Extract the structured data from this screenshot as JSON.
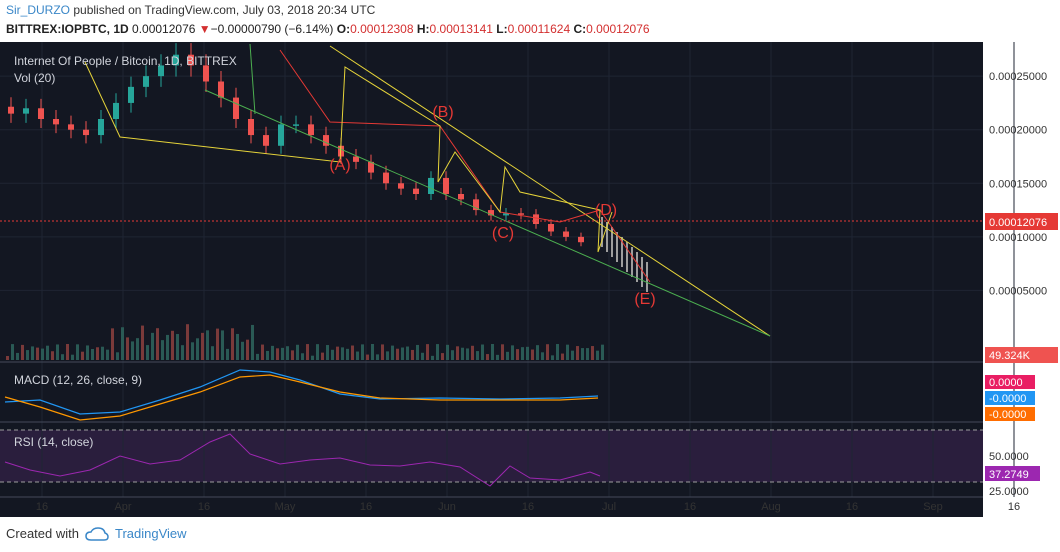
{
  "header": {
    "author": "Sir_DURZO",
    "published_text": "published on TradingView.com, July 03, 2018 20:34 UTC",
    "symbol": "BITTREX:IOPBTC, 1D",
    "last": "0.00012076",
    "change_arrow": "▼",
    "change": "−0.00000790 (−6.14%)",
    "o_label": "O:",
    "o": "0.00012308",
    "h_label": "H:",
    "h": "0.00013141",
    "l_label": "L:",
    "l": "0.00011624",
    "c_label": "C:",
    "c": "0.00012076"
  },
  "chart": {
    "title": "Internet Of People / Bitcoin, 1D, BITTREX",
    "volume_label": "Vol (20)",
    "macd_label": "MACD (12, 26, close, 9)",
    "rsi_label": "RSI (14, close)",
    "price_axis": [
      "0.00025000",
      "0.00020000",
      "0.00015000",
      "0.00010000",
      "0.00005000"
    ],
    "last_price_tag": "0.00012076",
    "volume_tag": "49.324K",
    "macd_tags": [
      "0.0000",
      "-0.0000",
      "-0.0000"
    ],
    "rsi_axis": [
      "50.0000",
      "25.0000"
    ],
    "rsi_tag": "37.2749",
    "time_axis": [
      "16",
      "Apr",
      "16",
      "May",
      "16",
      "Jun",
      "16",
      "Jul",
      "16",
      "Aug",
      "16",
      "Sep",
      "16"
    ],
    "wave_labels": [
      "(A)",
      "(B)",
      "(C)",
      "(D)",
      "(E)"
    ],
    "colors": {
      "background": "#131722",
      "up_candle": "#26a69a",
      "down_candle": "#ef5350",
      "trend_yellow": "#e6d43a",
      "trend_green": "#4caf50",
      "wave_red": "#e53935",
      "macd_line": "#2196f3",
      "signal_line": "#ff9800",
      "rsi_line": "#9c27b0",
      "price_tag": "#e53935"
    }
  },
  "chart_data": {
    "type": "candlestick",
    "title": "Internet Of People / Bitcoin, 1D, BITTREX",
    "approx_closes": [
      0.000215,
      0.00022,
      0.00021,
      0.000205,
      0.0002,
      0.000195,
      0.00021,
      0.000225,
      0.00024,
      0.00025,
      0.00026,
      0.00027,
      0.00026,
      0.000245,
      0.00023,
      0.00021,
      0.000195,
      0.000185,
      0.000205,
      0.000205,
      0.000195,
      0.000185,
      0.000175,
      0.00017,
      0.00016,
      0.00015,
      0.000145,
      0.00014,
      0.000155,
      0.00014,
      0.000135,
      0.000125,
      0.00012,
      0.000122,
      0.000121,
      0.000112,
      0.000105,
      0.0001,
      9.5e-05
    ],
    "ylim": [
      0,
      0.00028
    ],
    "last_close": 0.00012076
  },
  "footer": {
    "created_with": "Created with",
    "brand": "TradingView"
  }
}
